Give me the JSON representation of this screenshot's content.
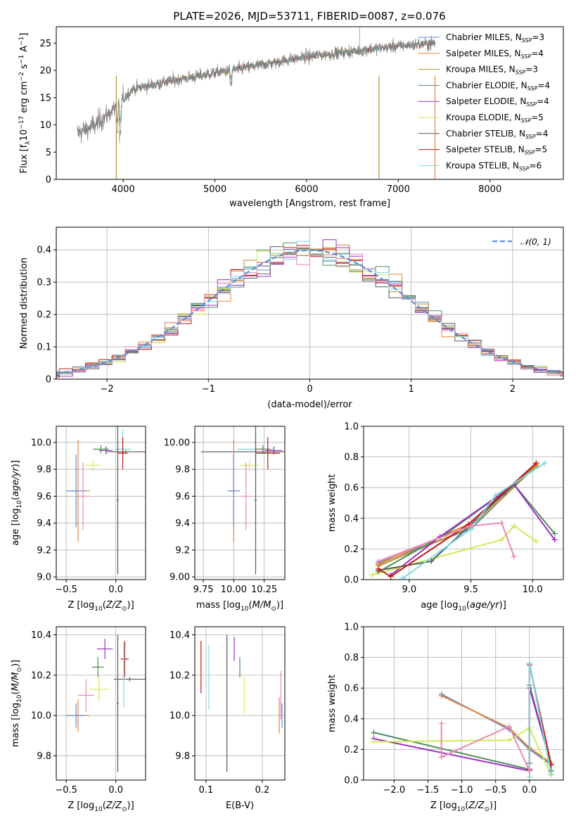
{
  "title": "PLATE=2026, MJD=53711, FIBERID=0087, z=0.076",
  "models": [
    {
      "name": "Chabrier MILES",
      "nssp": "3",
      "color": "#5a8ed8"
    },
    {
      "name": "Salpeter MILES",
      "nssp": "4",
      "color": "#e8843a"
    },
    {
      "name": "Kroupa MILES",
      "nssp": "3",
      "color": "#b0902a"
    },
    {
      "name": "Chabrier ELODIE",
      "nssp": "4",
      "color": "#4e8c5a"
    },
    {
      "name": "Salpeter ELODIE",
      "nssp": "4",
      "color": "#9b30c0"
    },
    {
      "name": "Kroupa ELODIE",
      "nssp": "5",
      "color": "#d0ea58"
    },
    {
      "name": "Chabrier STELIB",
      "nssp": "4",
      "color": "#5a5a5a"
    },
    {
      "name": "Salpeter STELIB",
      "nssp": "5",
      "color": "#c01a1a"
    },
    {
      "name": "Kroupa STELIB",
      "nssp": "6",
      "color": "#7fd8e0"
    }
  ],
  "extra_colors": {
    "pink": "#e888b8",
    "gray": "#808080"
  },
  "chart_data": [
    {
      "id": "spectrum",
      "type": "line",
      "xlabel": "wavelength [Angstrom, rest frame]",
      "ylabel": "Flux [f_λ10^-17 erg cm^-2 s^-1 A^-1]",
      "xlim": [
        3270,
        8800
      ],
      "ylim": [
        0,
        28
      ],
      "xticks": [
        4000,
        5000,
        6000,
        7000,
        8000
      ],
      "yticks": [
        0,
        5,
        10,
        15,
        20,
        25
      ],
      "grid": false,
      "legend_position": "right",
      "x_range": [
        3500,
        7400
      ],
      "continuum": [
        [
          3500,
          8.5
        ],
        [
          3700,
          10
        ],
        [
          3900,
          13
        ],
        [
          4100,
          16.5
        ],
        [
          4500,
          18
        ],
        [
          5000,
          19.5
        ],
        [
          5500,
          21
        ],
        [
          6000,
          22.5
        ],
        [
          6500,
          23.5
        ],
        [
          7000,
          24.5
        ],
        [
          7400,
          25
        ]
      ]
    },
    {
      "id": "residuals",
      "type": "line",
      "xlabel": "(data-model)/error",
      "ylabel": "Normed distribution",
      "xlim": [
        -2.5,
        2.5
      ],
      "ylim": [
        0,
        0.47
      ],
      "xticks": [
        -2,
        -1,
        0,
        1,
        2
      ],
      "yticks": [
        0.0,
        0.1,
        0.2,
        0.3,
        0.4
      ],
      "grid": true,
      "legend_position": "top-right",
      "normal_label": "𝒩(0, 1)",
      "normal_color": "#5a8ed8"
    },
    {
      "id": "age_vs_Z",
      "type": "scatter",
      "xlabel": "Z [log10(Z/Z⊙)]",
      "ylabel": "age  [log10(age/yr)]",
      "xlim": [
        -0.6,
        0.3
      ],
      "ylim": [
        8.98,
        10.12
      ],
      "xticks": [
        -0.5,
        0.0
      ],
      "yticks": [
        9.0,
        9.2,
        9.4,
        9.6,
        9.8,
        10.0
      ],
      "points": [
        {
          "x": 0.07,
          "y": 9.95,
          "xerr": 0.08,
          "yerr": 0.15,
          "color": "#7fd8e0"
        },
        {
          "x": -0.1,
          "y": 9.94,
          "xerr": 0.07,
          "yerr": 0.03,
          "color": "#9b30c0"
        },
        {
          "x": -0.15,
          "y": 9.95,
          "xerr": 0.08,
          "yerr": 0.03,
          "color": "#4e8c5a"
        },
        {
          "x": 0.1,
          "y": 9.93,
          "xerr": 0.2,
          "yerr": 0.01,
          "color": "#5a5a5a"
        },
        {
          "x": 0.07,
          "y": 9.92,
          "xerr": 0.05,
          "yerr": 0.12,
          "color": "#c01a1a"
        },
        {
          "x": -0.23,
          "y": 9.83,
          "xerr": 0.08,
          "yerr": 0.04,
          "color": "#d0ea58"
        },
        {
          "x": 0.02,
          "y": 9.57,
          "xerr": 0.01,
          "yerr": 0.55,
          "color": "#5a5a5a"
        },
        {
          "x": -0.38,
          "y": 9.64,
          "xerr": 0.12,
          "yerr": 0.38,
          "color": "#e8843a"
        },
        {
          "x": -0.4,
          "y": 9.64,
          "xerr": 0.1,
          "yerr": 0.27,
          "color": "#5a8ed8"
        },
        {
          "x": -0.33,
          "y": 9.6,
          "xerr": 0.07,
          "yerr": 0.25,
          "color": "#e888b8"
        }
      ]
    },
    {
      "id": "age_vs_mass",
      "type": "scatter",
      "xlabel": "mass [log10(M/M⊙)]",
      "ylabel": "",
      "xlim": [
        9.68,
        10.42
      ],
      "ylim": [
        8.98,
        10.12
      ],
      "xticks": [
        9.75,
        10.0,
        10.25
      ],
      "yticks": [
        9.0,
        9.2,
        9.4,
        9.6,
        9.8,
        10.0
      ],
      "points": [
        {
          "x": 10.18,
          "y": 9.95,
          "xerr": 0.15,
          "yerr": 0.15,
          "color": "#7fd8e0"
        },
        {
          "x": 10.33,
          "y": 9.94,
          "xerr": 0.07,
          "yerr": 0.03,
          "color": "#9b30c0"
        },
        {
          "x": 10.24,
          "y": 9.95,
          "xerr": 0.06,
          "yerr": 0.03,
          "color": "#4e8c5a"
        },
        {
          "x": 10.18,
          "y": 9.93,
          "xerr": 0.45,
          "yerr": 0.01,
          "color": "#5a5a5a"
        },
        {
          "x": 10.28,
          "y": 9.92,
          "xerr": 0.1,
          "yerr": 0.12,
          "color": "#c01a1a"
        },
        {
          "x": 10.13,
          "y": 9.83,
          "xerr": 0.08,
          "yerr": 0.04,
          "color": "#d0ea58"
        },
        {
          "x": 10.18,
          "y": 9.57,
          "xerr": 0.01,
          "yerr": 0.55,
          "color": "#5a5a5a"
        },
        {
          "x": 10.0,
          "y": 9.64,
          "xerr": 0.05,
          "yerr": 0.38,
          "color": "#e8843a"
        },
        {
          "x": 10.0,
          "y": 9.64,
          "xerr": 0.05,
          "yerr": 0.27,
          "color": "#5a8ed8"
        },
        {
          "x": 10.1,
          "y": 9.6,
          "xerr": 0.05,
          "yerr": 0.25,
          "color": "#e888b8"
        }
      ]
    },
    {
      "id": "weight_vs_age",
      "type": "line",
      "xlabel": "age  [log10(age/yr)]",
      "ylabel": "mass weight",
      "xlim": [
        8.63,
        10.25
      ],
      "ylim": [
        0,
        1
      ],
      "xticks": [
        9.0,
        9.5,
        10.0
      ],
      "yticks": [
        0.0,
        0.2,
        0.4,
        0.6,
        0.8,
        1.0
      ],
      "grid": true,
      "series": [
        {
          "color": "#5a8ed8",
          "x": [
            8.75,
            9.5,
            10.03
          ],
          "y": [
            0.11,
            0.33,
            0.75
          ]
        },
        {
          "color": "#e8843a",
          "x": [
            8.75,
            9.48,
            10.03
          ],
          "y": [
            0.1,
            0.36,
            0.75
          ]
        },
        {
          "color": "#b0902a",
          "x": [
            8.75,
            9.5,
            10.03
          ],
          "y": [
            0.09,
            0.34,
            0.74
          ]
        },
        {
          "color": "#4e8c5a",
          "x": [
            8.75,
            9.3,
            9.85,
            10.18
          ],
          "y": [
            0.05,
            0.3,
            0.62,
            0.3
          ]
        },
        {
          "color": "#9b30c0",
          "x": [
            8.85,
            9.25,
            9.85,
            10.18
          ],
          "y": [
            0.03,
            0.28,
            0.62,
            0.26
          ]
        },
        {
          "color": "#d0ea58",
          "x": [
            8.7,
            9.75,
            9.85,
            10.03
          ],
          "y": [
            0.03,
            0.26,
            0.35,
            0.25
          ]
        },
        {
          "color": "#5a5a5a",
          "x": [
            8.75,
            9.18,
            9.77,
            10.03
          ],
          "y": [
            0.06,
            0.12,
            0.56,
            0.76
          ]
        },
        {
          "color": "#c01a1a",
          "x": [
            8.75,
            8.85,
            9.48,
            10.03
          ],
          "y": [
            0.07,
            0.02,
            0.36,
            0.76
          ]
        },
        {
          "color": "#7fd8e0",
          "x": [
            8.95,
            9.5,
            9.7,
            10.1
          ],
          "y": [
            0.01,
            0.33,
            0.55,
            0.76
          ]
        },
        {
          "color": "#e888b8",
          "x": [
            8.75,
            9.5,
            9.75,
            9.85
          ],
          "y": [
            0.12,
            0.35,
            0.37,
            0.15
          ]
        }
      ]
    },
    {
      "id": "mass_vs_Z",
      "type": "scatter",
      "xlabel": "Z [log10(Z/Z⊙)]",
      "ylabel": "mass [log10(M/M⊙)]",
      "xlim": [
        -0.6,
        0.3
      ],
      "ylim": [
        9.68,
        10.44
      ],
      "xticks": [
        -0.5,
        0.0
      ],
      "yticks": [
        9.8,
        10.0,
        10.2,
        10.4
      ],
      "points": [
        {
          "x": -0.11,
          "y": 10.33,
          "xerr": 0.08,
          "yerr": 0.05,
          "color": "#9b30c0"
        },
        {
          "x": 0.09,
          "y": 10.28,
          "xerr": 0.04,
          "yerr": 0.09,
          "color": "#c01a1a"
        },
        {
          "x": -0.18,
          "y": 10.24,
          "xerr": 0.06,
          "yerr": 0.05,
          "color": "#4e8c5a"
        },
        {
          "x": 0.14,
          "y": 10.18,
          "xerr": 0.16,
          "yerr": 0.01,
          "color": "#5a5a5a"
        },
        {
          "x": 0.08,
          "y": 10.2,
          "xerr": 0.01,
          "yerr": 0.16,
          "color": "#7fd8e0"
        },
        {
          "x": -0.17,
          "y": 10.13,
          "xerr": 0.1,
          "yerr": 0.06,
          "color": "#d0ea58"
        },
        {
          "x": -0.3,
          "y": 10.1,
          "xerr": 0.08,
          "yerr": 0.08,
          "color": "#e888b8"
        },
        {
          "x": 0.02,
          "y": 10.06,
          "xerr": 0.01,
          "yerr": 0.34,
          "color": "#5a5a5a"
        },
        {
          "x": -0.38,
          "y": 10.0,
          "xerr": 0.12,
          "yerr": 0.08,
          "color": "#e8843a"
        },
        {
          "x": -0.4,
          "y": 10.0,
          "xerr": 0.1,
          "yerr": 0.06,
          "color": "#5a8ed8"
        }
      ]
    },
    {
      "id": "mass_vs_EBV",
      "type": "scatter",
      "xlabel": "E(B-V)",
      "ylabel": "",
      "xlim": [
        0.08,
        0.24
      ],
      "ylim": [
        9.68,
        10.44
      ],
      "xticks": [
        0.1,
        0.2
      ],
      "yticks": [
        9.8,
        10.0,
        10.2,
        10.4
      ],
      "points": [
        {
          "x": 0.091,
          "y": 10.24,
          "yerr": 0.13,
          "color": "#c01a1a"
        },
        {
          "x": 0.105,
          "y": 10.19,
          "yerr": 0.16,
          "color": "#7fd8e0"
        },
        {
          "x": 0.137,
          "y": 10.06,
          "yerr": 0.34,
          "color": "#5a5a5a"
        },
        {
          "x": 0.15,
          "y": 10.33,
          "yerr": 0.06,
          "color": "#9b30c0"
        },
        {
          "x": 0.16,
          "y": 10.24,
          "yerr": 0.05,
          "color": "#4e8c5a"
        },
        {
          "x": 0.168,
          "y": 10.1,
          "yerr": 0.09,
          "color": "#d0ea58"
        },
        {
          "x": 0.23,
          "y": 10.0,
          "yerr": 0.09,
          "color": "#e8843a"
        },
        {
          "x": 0.233,
          "y": 10.1,
          "yerr": 0.12,
          "color": "#e888b8"
        },
        {
          "x": 0.235,
          "y": 10.0,
          "yerr": 0.06,
          "color": "#5a8ed8"
        }
      ]
    },
    {
      "id": "weight_vs_Z",
      "type": "line",
      "xlabel": "Z [log10(Z/Z⊙)]",
      "ylabel": "mass weight",
      "xlim": [
        -2.45,
        0.5
      ],
      "ylim": [
        0,
        1
      ],
      "xticks": [
        -2.0,
        -1.5,
        -1.0,
        -0.5,
        0.0
      ],
      "yticks": [
        0.0,
        0.2,
        0.4,
        0.6,
        0.8,
        1.0
      ],
      "grid": true,
      "series": [
        {
          "color": "#5a8ed8",
          "x": [
            -1.3,
            -0.3,
            0.0,
            0.32
          ],
          "y": [
            0.56,
            0.33,
            0.2,
            0.1
          ]
        },
        {
          "color": "#e8843a",
          "x": [
            -1.3,
            -0.3,
            0.0,
            0.32
          ],
          "y": [
            0.55,
            0.34,
            0.21,
            0.11
          ]
        },
        {
          "color": "#4e8c5a",
          "x": [
            -2.3,
            0.0,
            0.0,
            0.32
          ],
          "y": [
            0.31,
            0.07,
            0.62,
            0.1
          ]
        },
        {
          "color": "#9b30c0",
          "x": [
            -2.3,
            0.0,
            0.0,
            0.32
          ],
          "y": [
            0.27,
            0.06,
            0.6,
            0.1
          ]
        },
        {
          "color": "#d0ea58",
          "x": [
            -2.3,
            -0.3,
            0.0,
            0.32
          ],
          "y": [
            0.25,
            0.26,
            0.34,
            0.03
          ]
        },
        {
          "color": "#5a5a5a",
          "x": [
            0.0,
            0.0,
            0.32
          ],
          "y": [
            0.11,
            0.76,
            0.06
          ]
        },
        {
          "color": "#c01a1a",
          "x": [
            0.0,
            0.0,
            0.32
          ],
          "y": [
            0.07,
            0.75,
            0.1
          ]
        },
        {
          "color": "#7fd8e0",
          "x": [
            0.0,
            0.0,
            0.32
          ],
          "y": [
            0.02,
            0.76,
            0.04
          ]
        },
        {
          "color": "#e888b8",
          "x": [
            -1.3,
            -1.3,
            -0.3,
            0.0
          ],
          "y": [
            0.37,
            0.15,
            0.35,
            0.06
          ]
        }
      ]
    }
  ]
}
